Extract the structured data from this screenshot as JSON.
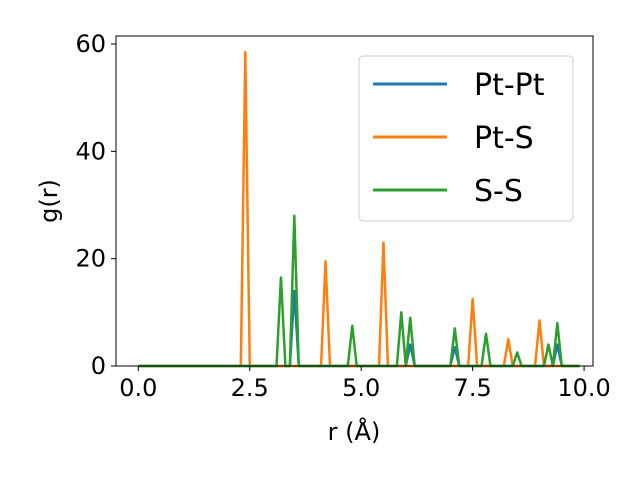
{
  "chart_data": {
    "type": "line",
    "title": "",
    "xlabel": "r (Å)",
    "ylabel": "g(r)",
    "xlim": [
      -0.5,
      10.2
    ],
    "ylim": [
      0,
      61.5
    ],
    "xticks": [
      0.0,
      2.5,
      5.0,
      7.5,
      10.0
    ],
    "xtick_labels": [
      "0.0",
      "2.5",
      "5.0",
      "7.5",
      "10.0"
    ],
    "yticks": [
      0,
      20,
      40,
      60
    ],
    "ytick_labels": [
      "0",
      "20",
      "40",
      "60"
    ],
    "grid": false,
    "legend": "top-right",
    "series": [
      {
        "name": "Pt-Pt",
        "color": "#1f77b4",
        "x": [
          0.0,
          3.4,
          3.5,
          3.6,
          6.0,
          6.1,
          6.2,
          7.0,
          7.1,
          7.2,
          9.3,
          9.4,
          9.5,
          9.9
        ],
        "y": [
          0,
          0,
          14.0,
          0,
          0,
          4.0,
          0,
          0,
          3.5,
          0,
          0,
          4.0,
          0,
          0
        ]
      },
      {
        "name": "Pt-S",
        "color": "#ff7f0e",
        "x": [
          0.0,
          2.3,
          2.4,
          2.5,
          4.1,
          4.2,
          4.3,
          5.4,
          5.5,
          5.6,
          7.4,
          7.5,
          7.6,
          8.2,
          8.3,
          8.4,
          8.9,
          9.0,
          9.1,
          9.9
        ],
        "y": [
          0,
          0,
          58.5,
          0,
          0,
          19.5,
          0,
          0,
          23.0,
          0,
          0,
          12.5,
          0,
          0,
          5.0,
          0,
          0,
          8.5,
          0,
          0
        ]
      },
      {
        "name": "S-S",
        "color": "#2ca02c",
        "x": [
          0.0,
          3.1,
          3.2,
          3.3,
          3.4,
          3.5,
          3.6,
          4.7,
          4.8,
          4.9,
          5.8,
          5.9,
          6.0,
          6.1,
          6.2,
          7.0,
          7.1,
          7.2,
          7.7,
          7.8,
          7.9,
          8.4,
          8.5,
          8.6,
          9.1,
          9.2,
          9.3,
          9.4,
          9.5,
          9.9
        ],
        "y": [
          0,
          0,
          16.5,
          0,
          0,
          28.0,
          0,
          0,
          7.5,
          0,
          0,
          10.0,
          0,
          9.0,
          0,
          0,
          7.0,
          0,
          0,
          6.0,
          0,
          0,
          2.5,
          0,
          0,
          4.0,
          0,
          8.0,
          0,
          0
        ]
      }
    ]
  }
}
